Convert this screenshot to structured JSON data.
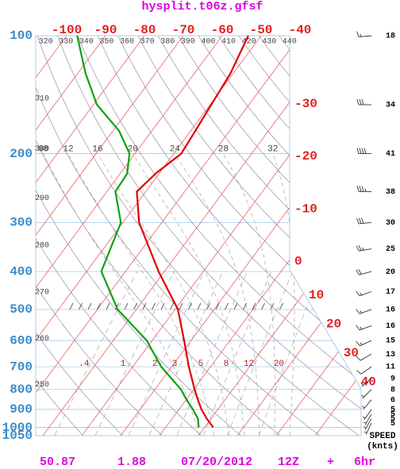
{
  "chart_data": {
    "type": "skew-t",
    "title": "hysplit.t06z.gfsf",
    "ylim": [
      1050,
      100
    ],
    "log_y": true,
    "yticks": [
      100,
      200,
      300,
      400,
      500,
      600,
      700,
      800,
      900,
      1000,
      1050
    ],
    "xticks": [
      -100,
      -90,
      -80,
      -70,
      -60,
      -50,
      -40,
      -30,
      -20,
      -10,
      0,
      10,
      20,
      30,
      40
    ],
    "isotherm_color": "#e03030",
    "dry_adiabats": [
      250,
      260,
      270,
      280,
      290,
      300,
      310,
      320,
      330,
      340,
      350,
      360,
      370,
      380,
      390,
      400,
      410,
      420,
      430,
      440
    ],
    "moist_adiabats": [
      {
        "value": 8,
        "label": "08"
      },
      12,
      16,
      20,
      24,
      28,
      32
    ],
    "mixing_ratios": [
      {
        "value": 0.4,
        "label": ".4"
      },
      1,
      2,
      3,
      5,
      8,
      12,
      20
    ],
    "series": [
      {
        "color": "#e00000",
        "pressure": [
          1000,
          950,
          900,
          850,
          800,
          700,
          600,
          500,
          400,
          300,
          250,
          225,
          200,
          175,
          150,
          125,
          100
        ],
        "values": [
          12.2,
          8.9,
          5.8,
          3.0,
          0.2,
          -5.6,
          -11.8,
          -19.3,
          -31.5,
          -45.8,
          -52.3,
          -50.9,
          -48.1,
          -48.8,
          -49.7,
          -50.7,
          -53.3
        ]
      },
      {
        "color": "#10a010",
        "pressure": [
          1000,
          950,
          900,
          850,
          800,
          700,
          600,
          500,
          400,
          300,
          250,
          225,
          200,
          175,
          150,
          125,
          100
        ],
        "values": [
          8.5,
          6.6,
          3.6,
          0.1,
          -3.3,
          -12.7,
          -21.4,
          -34.8,
          -46.2,
          -50.5,
          -57.8,
          -58.2,
          -61.4,
          -68.4,
          -79.1,
          -87.9,
          -97.3
        ]
      }
    ],
    "wind": {
      "pressure": [
        100,
        150,
        200,
        250,
        300,
        350,
        400,
        450,
        500,
        550,
        600,
        650,
        700,
        750,
        800,
        850,
        900,
        925,
        950,
        975
      ],
      "speed": [
        18,
        34,
        41,
        38,
        30,
        25,
        20,
        17,
        16,
        16,
        15,
        13,
        11,
        9,
        8,
        6,
        5,
        5,
        5,
        5
      ],
      "direction": [
        265,
        270,
        270,
        270,
        265,
        260,
        255,
        250,
        250,
        250,
        245,
        240,
        235,
        230,
        225,
        220,
        215,
        210,
        210,
        205
      ]
    },
    "speed_label": "SPEED",
    "speed_unit": "(knts)",
    "footer": [
      50.87,
      1.88,
      "07/20/2012",
      "12Z",
      "+",
      "6hr"
    ]
  }
}
